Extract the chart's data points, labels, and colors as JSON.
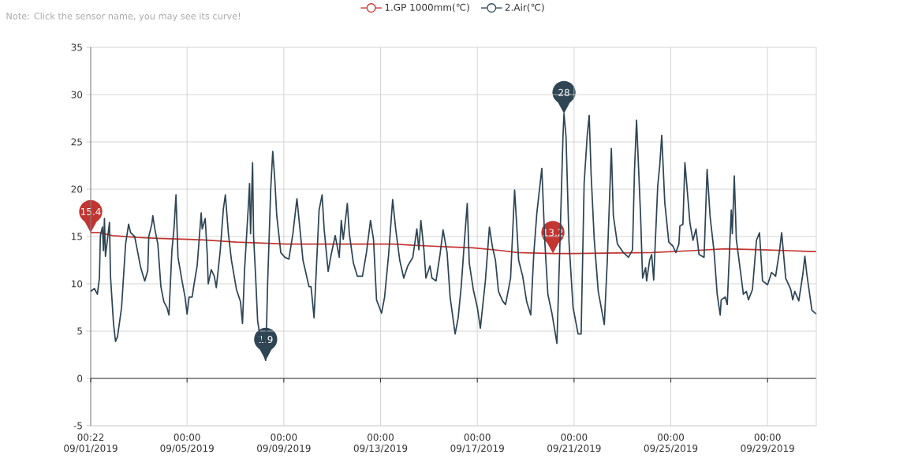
{
  "chart_data": {
    "type": "line",
    "legend": "top",
    "grid": true,
    "annotations": [
      "Note: Click the sensor name, you may see its curve!",
      {
        "text": "15.4",
        "x": "2019-09-01T00:22",
        "y": 15.4
      },
      {
        "text": "1.9",
        "x": "2019-09-08T06:00",
        "y": 1.9
      },
      {
        "text": "28",
        "x": "2019-09-20T14:00",
        "y": 28.0
      },
      {
        "text": "13.2",
        "x": "2019-09-20T03:00",
        "y": 13.2
      }
    ],
    "xlim": [
      "2019-09-01T00:22",
      "2019-10-01T00:22"
    ],
    "xticks": [
      {
        "value": "2019-09-01T00:22",
        "label": "00:22 09/01/2019"
      },
      {
        "value": "2019-09-05T00:00",
        "label": "00:00 09/05/2019"
      },
      {
        "value": "2019-09-09T00:00",
        "label": "00:00 09/09/2019"
      },
      {
        "value": "2019-09-13T00:00",
        "label": "00:00 09/13/2019"
      },
      {
        "value": "2019-09-17T00:00",
        "label": "00:00 09/17/2019"
      },
      {
        "value": "2019-09-21T00:00",
        "label": "00:00 09/21/2019"
      },
      {
        "value": "2019-09-25T00:00",
        "label": "00:00 09/25/2019"
      },
      {
        "value": "2019-09-29T00:00",
        "label": "00:00 09/29/2019"
      }
    ],
    "ylim": [
      -5,
      35
    ],
    "yticks": [
      -5,
      0,
      5,
      10,
      15,
      20,
      25,
      30,
      35
    ],
    "series": [
      {
        "name": "1.GP 1000mm(℃)",
        "color": "#c23531",
        "x": [
          "2019-09-01T00:22",
          "2019-09-01T09:00",
          "2019-09-01T22:00",
          "2019-09-02T22:00",
          "2019-09-03T19:00",
          "2019-09-05T02:00",
          "2019-09-05T23:00",
          "2019-09-07T01:00",
          "2019-09-08T03:00",
          "2019-09-09T02:00",
          "2019-09-13T13:00",
          "2019-09-14T05:00",
          "2019-09-14T23:00",
          "2019-09-15T18:00",
          "2019-09-16T20:00",
          "2019-09-18T01:00",
          "2019-09-18T16:00",
          "2019-09-20T03:00",
          "2019-09-20T23:00",
          "2019-09-24T05:00",
          "2019-09-25T20:00",
          "2019-09-27T06:00",
          "2019-09-28T19:00",
          "2019-09-29T22:00",
          "2019-10-01T00:22"
        ],
        "values": [
          15.4,
          15.4,
          15.1,
          14.9,
          14.8,
          14.7,
          14.6,
          14.4,
          14.3,
          14.2,
          14.2,
          14.1,
          14.0,
          13.9,
          13.8,
          13.5,
          13.3,
          13.2,
          13.2,
          13.3,
          13.5,
          13.7,
          13.6,
          13.5,
          13.4
        ]
      },
      {
        "name": "2.Air(℃)",
        "color": "#2f4554",
        "x": [
          "2019-09-01T00:22",
          "2019-09-01T04:00",
          "2019-09-01T07:00",
          "2019-09-01T09:00",
          "2019-09-01T10:00",
          "2019-09-01T12:00",
          "2019-09-01T13:00",
          "2019-09-01T14:00",
          "2019-09-01T15:00",
          "2019-09-01T19:00",
          "2019-09-01T20:00",
          "2019-09-01T23:00",
          "2019-09-02T01:00",
          "2019-09-02T03:00",
          "2019-09-02T07:00",
          "2019-09-02T11:00",
          "2019-09-02T14:00",
          "2019-09-02T16:00",
          "2019-09-02T20:00",
          "2019-09-02T22:00",
          "2019-09-03T02:00",
          "2019-09-03T06:00",
          "2019-09-03T09:00",
          "2019-09-03T10:00",
          "2019-09-03T13:00",
          "2019-09-03T14:00",
          "2019-09-03T16:00",
          "2019-09-03T19:00",
          "2019-09-03T22:00",
          "2019-09-04T01:00",
          "2019-09-04T04:00",
          "2019-09-04T06:00",
          "2019-09-04T09:00",
          "2019-09-04T11:00",
          "2019-09-04T13:00",
          "2019-09-04T15:00",
          "2019-09-04T19:00",
          "2019-09-04T22:00",
          "2019-09-05T00:00",
          "2019-09-05T02:00",
          "2019-09-05T05:00",
          "2019-09-05T07:00",
          "2019-09-05T10:00",
          "2019-09-05T14:00",
          "2019-09-05T15:00",
          "2019-09-05T18:00",
          "2019-09-05T20:00",
          "2019-09-05T21:00",
          "2019-09-06T00:00",
          "2019-09-06T03:00",
          "2019-09-06T05:00",
          "2019-09-06T09:00",
          "2019-09-06T12:00",
          "2019-09-06T14:00",
          "2019-09-06T17:00",
          "2019-09-06T20:00",
          "2019-09-07T01:00",
          "2019-09-07T05:00",
          "2019-09-07T07:00",
          "2019-09-07T09:00",
          "2019-09-07T13:00",
          "2019-09-07T14:00",
          "2019-09-07T15:00",
          "2019-09-07T17:00",
          "2019-09-07T18:00",
          "2019-09-07T20:00",
          "2019-09-07T22:00",
          "2019-09-08T00:00",
          "2019-09-08T03:00",
          "2019-09-08T06:00",
          "2019-09-08T08:00",
          "2019-09-08T11:00",
          "2019-09-08T13:00",
          "2019-09-08T15:00",
          "2019-09-08T17:00",
          "2019-09-08T21:00",
          "2019-09-09T01:00",
          "2019-09-09T05:00",
          "2019-09-09T09:00",
          "2019-09-09T13:00",
          "2019-09-09T16:00",
          "2019-09-09T19:00",
          "2019-09-10T01:00",
          "2019-09-10T03:00",
          "2019-09-10T06:00",
          "2019-09-10T11:00",
          "2019-09-10T14:00",
          "2019-09-10T16:00",
          "2019-09-10T20:00",
          "2019-09-10T23:00",
          "2019-09-11T03:00",
          "2019-09-11T07:00",
          "2019-09-11T09:00",
          "2019-09-11T11:00",
          "2019-09-11T15:00",
          "2019-09-11T17:00",
          "2019-09-11T21:00",
          "2019-09-12T01:00",
          "2019-09-12T06:00",
          "2019-09-12T10:00",
          "2019-09-12T14:00",
          "2019-09-12T17:00",
          "2019-09-12T20:00",
          "2019-09-13T01:00",
          "2019-09-13T04:00",
          "2019-09-13T08:00",
          "2019-09-13T12:00",
          "2019-09-13T15:00",
          "2019-09-13T19:00",
          "2019-09-13T23:00",
          "2019-09-14T03:00",
          "2019-09-14T08:00",
          "2019-09-14T12:00",
          "2019-09-14T14:00",
          "2019-09-14T16:00",
          "2019-09-14T19:00",
          "2019-09-14T21:00",
          "2019-09-15T01:00",
          "2019-09-15T03:00",
          "2019-09-15T07:00",
          "2019-09-15T11:00",
          "2019-09-15T14:00",
          "2019-09-15T18:00",
          "2019-09-15T21:00",
          "2019-09-16T02:00",
          "2019-09-16T05:00",
          "2019-09-16T08:00",
          "2019-09-16T11:00",
          "2019-09-16T14:00",
          "2019-09-16T16:00",
          "2019-09-16T20:00",
          "2019-09-17T00:00",
          "2019-09-17T03:00",
          "2019-09-17T08:00",
          "2019-09-17T12:00",
          "2019-09-17T15:00",
          "2019-09-17T18:00",
          "2019-09-17T21:00",
          "2019-09-18T01:00",
          "2019-09-18T04:00",
          "2019-09-18T09:00",
          "2019-09-18T13:00",
          "2019-09-18T15:00",
          "2019-09-18T17:00",
          "2019-09-18T21:00",
          "2019-09-19T01:00",
          "2019-09-19T05:00",
          "2019-09-19T08:00",
          "2019-09-19T11:00",
          "2019-09-19T16:00",
          "2019-09-19T19:00",
          "2019-09-19T22:00",
          "2019-09-20T02:00",
          "2019-09-20T07:00",
          "2019-09-20T10:00",
          "2019-09-20T13:00",
          "2019-09-20T14:00",
          "2019-09-20T16:00",
          "2019-09-20T19:00",
          "2019-09-20T23:00",
          "2019-09-21T04:00",
          "2019-09-21T07:00",
          "2019-09-21T10:00",
          "2019-09-21T13:00",
          "2019-09-21T15:00",
          "2019-09-21T17:00",
          "2019-09-21T20:00",
          "2019-09-22T00:00",
          "2019-09-22T06:00",
          "2019-09-22T09:00",
          "2019-09-22T13:00",
          "2019-09-22T15:00",
          "2019-09-22T19:00",
          "2019-09-23T01:00",
          "2019-09-23T06:00",
          "2019-09-23T10:00",
          "2019-09-23T12:00",
          "2019-09-23T14:00",
          "2019-09-23T18:00",
          "2019-09-23T20:00",
          "2019-09-23T23:00",
          "2019-09-24T00:00",
          "2019-09-24T03:00",
          "2019-09-24T05:00",
          "2019-09-24T07:00",
          "2019-09-24T11:00",
          "2019-09-24T13:00",
          "2019-09-24T15:00",
          "2019-09-24T18:00",
          "2019-09-24T22:00",
          "2019-09-25T02:00",
          "2019-09-25T05:00",
          "2019-09-25T08:00",
          "2019-09-25T09:00",
          "2019-09-25T12:00",
          "2019-09-25T14:00",
          "2019-09-25T17:00",
          "2019-09-25T19:00",
          "2019-09-25T22:00",
          "2019-09-26T01:00",
          "2019-09-26T04:00",
          "2019-09-26T09:00",
          "2019-09-26T12:00",
          "2019-09-26T15:00",
          "2019-09-26T19:00",
          "2019-09-26T22:00",
          "2019-09-27T01:00",
          "2019-09-27T02:00",
          "2019-09-27T06:00",
          "2019-09-27T08:00",
          "2019-09-27T12:00",
          "2019-09-27T13:00",
          "2019-09-27T15:00",
          "2019-09-27T17:00",
          "2019-09-27T21:00",
          "2019-09-28T00:00",
          "2019-09-28T03:00",
          "2019-09-28T05:00",
          "2019-09-28T09:00",
          "2019-09-28T13:00",
          "2019-09-28T16:00",
          "2019-09-28T19:00",
          "2019-09-29T00:00",
          "2019-09-29T04:00",
          "2019-09-29T08:00",
          "2019-09-29T12:00",
          "2019-09-29T14:00",
          "2019-09-29T18:00",
          "2019-09-29T23:00",
          "2019-09-30T01:00",
          "2019-09-30T03:00",
          "2019-09-30T07:00",
          "2019-09-30T11:00",
          "2019-09-30T13:00",
          "2019-09-30T15:00",
          "2019-09-30T20:00",
          "2019-10-01T00:22"
        ],
        "values": [
          9.2,
          9.5,
          8.9,
          10.6,
          15.1,
          16.0,
          13.5,
          16.9,
          12.9,
          16.5,
          10.8,
          5.8,
          3.9,
          4.4,
          7.5,
          14.2,
          16.3,
          15.4,
          15.0,
          13.9,
          11.7,
          10.3,
          11.4,
          15.0,
          16.3,
          17.2,
          15.8,
          14.2,
          9.7,
          8.1,
          7.5,
          6.7,
          13.6,
          15.8,
          19.4,
          12.8,
          10.3,
          8.6,
          6.8,
          8.6,
          8.6,
          10.0,
          11.9,
          17.5,
          15.8,
          16.9,
          13.1,
          10.0,
          11.5,
          10.8,
          9.6,
          13.6,
          17.9,
          19.4,
          15.3,
          12.5,
          9.4,
          8.1,
          5.8,
          11.4,
          18.6,
          20.6,
          15.3,
          22.8,
          15.0,
          10.8,
          6.1,
          4.7,
          3.1,
          1.9,
          10.3,
          20.0,
          24.0,
          21.1,
          17.2,
          13.3,
          12.8,
          12.6,
          15.3,
          19.0,
          15.8,
          12.5,
          9.7,
          9.7,
          6.4,
          17.8,
          19.4,
          15.8,
          11.3,
          13.1,
          15.1,
          12.8,
          16.7,
          14.7,
          18.5,
          15.3,
          12.2,
          10.8,
          10.8,
          13.3,
          16.7,
          14.7,
          8.3,
          6.9,
          8.6,
          13.1,
          18.9,
          15.8,
          12.5,
          10.6,
          11.9,
          12.8,
          15.8,
          13.6,
          16.7,
          13.6,
          10.6,
          11.9,
          10.6,
          10.3,
          13.1,
          15.7,
          13.3,
          8.6,
          4.7,
          6.4,
          9.7,
          14.2,
          18.5,
          12.2,
          9.4,
          7.5,
          5.3,
          10.3,
          16.0,
          13.9,
          12.5,
          9.2,
          8.2,
          7.8,
          10.6,
          19.9,
          16.4,
          12.5,
          10.8,
          8.1,
          6.7,
          13.1,
          17.4,
          22.2,
          14.4,
          8.9,
          6.9,
          3.7,
          14.4,
          25.6,
          28.0,
          25.6,
          14.4,
          7.5,
          4.7,
          4.7,
          20.6,
          25.6,
          27.8,
          21.4,
          14.7,
          9.2,
          5.7,
          12.5,
          24.3,
          17.2,
          14.2,
          13.3,
          12.8,
          13.6,
          22.1,
          27.3,
          17.2,
          10.6,
          11.7,
          10.3,
          12.5,
          13.1,
          10.4,
          20.3,
          22.5,
          25.7,
          18.6,
          14.4,
          14.0,
          13.3,
          14.2,
          16.1,
          16.3,
          22.8,
          19.0,
          16.4,
          14.6,
          15.8,
          13.1,
          12.8,
          22.1,
          17.1,
          13.3,
          8.9,
          6.7,
          8.3,
          8.6,
          7.8,
          17.8,
          15.3,
          21.4,
          14.7,
          11.4,
          8.9,
          9.2,
          8.3,
          9.4,
          14.6,
          15.4,
          10.3,
          9.9,
          11.2,
          10.8,
          13.6,
          15.4,
          10.6,
          9.4,
          8.3,
          9.2,
          8.2,
          11.0,
          12.9,
          11.0,
          7.2,
          6.8
        ]
      }
    ]
  }
}
